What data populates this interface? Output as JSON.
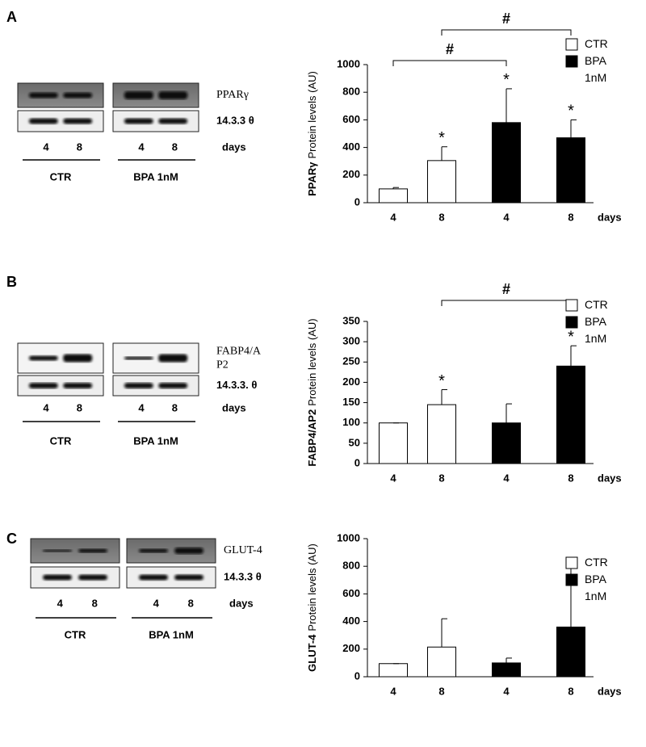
{
  "chart_data": [
    {
      "type": "bar",
      "panel": "A",
      "ylabel_bold": "PPARγ",
      "ylabel": "Protein levels (AU)",
      "xlabel": "days",
      "categories": [
        "4",
        "8",
        "4",
        "8"
      ],
      "series": [
        {
          "name": "CTR",
          "color": "#ffffff",
          "values": [
            100,
            305,
            null,
            null
          ],
          "errors": [
            10,
            100,
            null,
            null
          ]
        },
        {
          "name": "BPA 1nM",
          "color": "#000000",
          "values": [
            null,
            null,
            580,
            470
          ],
          "errors": [
            null,
            null,
            245,
            130
          ]
        }
      ],
      "value_annotations": [
        null,
        "*",
        "*",
        "*"
      ],
      "comparisons": [
        {
          "categories": [
            0,
            2
          ],
          "label": "#"
        },
        {
          "categories": [
            1,
            3
          ],
          "label": "#"
        }
      ],
      "ylim": [
        0,
        1000
      ],
      "yticks": [
        0,
        200,
        400,
        600,
        800,
        1000
      ],
      "blot": {
        "bands": [
          "PPARγ",
          "14.3.3 θ"
        ],
        "lanes": [
          "4",
          "8",
          "4",
          "8"
        ],
        "lane_unit": "days",
        "groups": [
          "CTR",
          "BPA 1nM"
        ]
      }
    },
    {
      "type": "bar",
      "panel": "B",
      "ylabel_bold": "FABP4/AP2",
      "ylabel": "Protein levels (AU)",
      "xlabel": "days",
      "categories": [
        "4",
        "8",
        "4",
        "8"
      ],
      "series": [
        {
          "name": "CTR",
          "color": "#ffffff",
          "values": [
            100,
            145,
            null,
            null
          ],
          "errors": [
            0,
            37,
            null,
            null
          ]
        },
        {
          "name": "BPA 1nM",
          "color": "#000000",
          "values": [
            null,
            null,
            100,
            240
          ],
          "errors": [
            null,
            null,
            47,
            50
          ]
        }
      ],
      "value_annotations": [
        null,
        "*",
        null,
        "*"
      ],
      "comparisons": [
        {
          "categories": [
            1,
            3
          ],
          "label": "#"
        }
      ],
      "ylim": [
        0,
        350
      ],
      "yticks": [
        0,
        50,
        100,
        150,
        200,
        250,
        300,
        350
      ],
      "blot": {
        "bands": [
          "FABP4/A P2",
          "14.3.3. θ"
        ],
        "lanes": [
          "4",
          "8",
          "4",
          "8"
        ],
        "lane_unit": "days",
        "groups": [
          "CTR",
          "BPA 1nM"
        ]
      }
    },
    {
      "type": "bar",
      "panel": "C",
      "ylabel_bold": "GLUT-4",
      "ylabel": "Protein levels (AU)",
      "xlabel": "days",
      "categories": [
        "4",
        "8",
        "4",
        "8"
      ],
      "series": [
        {
          "name": "CTR",
          "color": "#ffffff",
          "values": [
            95,
            215,
            null,
            null
          ],
          "errors": [
            0,
            205,
            null,
            null
          ]
        },
        {
          "name": "BPA 1nM",
          "color": "#000000",
          "values": [
            null,
            null,
            100,
            360
          ],
          "errors": [
            null,
            null,
            35,
            455
          ]
        }
      ],
      "value_annotations": [
        null,
        null,
        null,
        null
      ],
      "comparisons": [],
      "ylim": [
        0,
        1000
      ],
      "yticks": [
        0,
        200,
        400,
        600,
        800,
        1000
      ],
      "blot": {
        "bands": [
          "GLUT-4",
          "14.3.3 θ"
        ],
        "lanes": [
          "4",
          "8",
          "4",
          "8"
        ],
        "lane_unit": "days",
        "groups": [
          "CTR",
          "BPA 1nM"
        ]
      }
    }
  ]
}
